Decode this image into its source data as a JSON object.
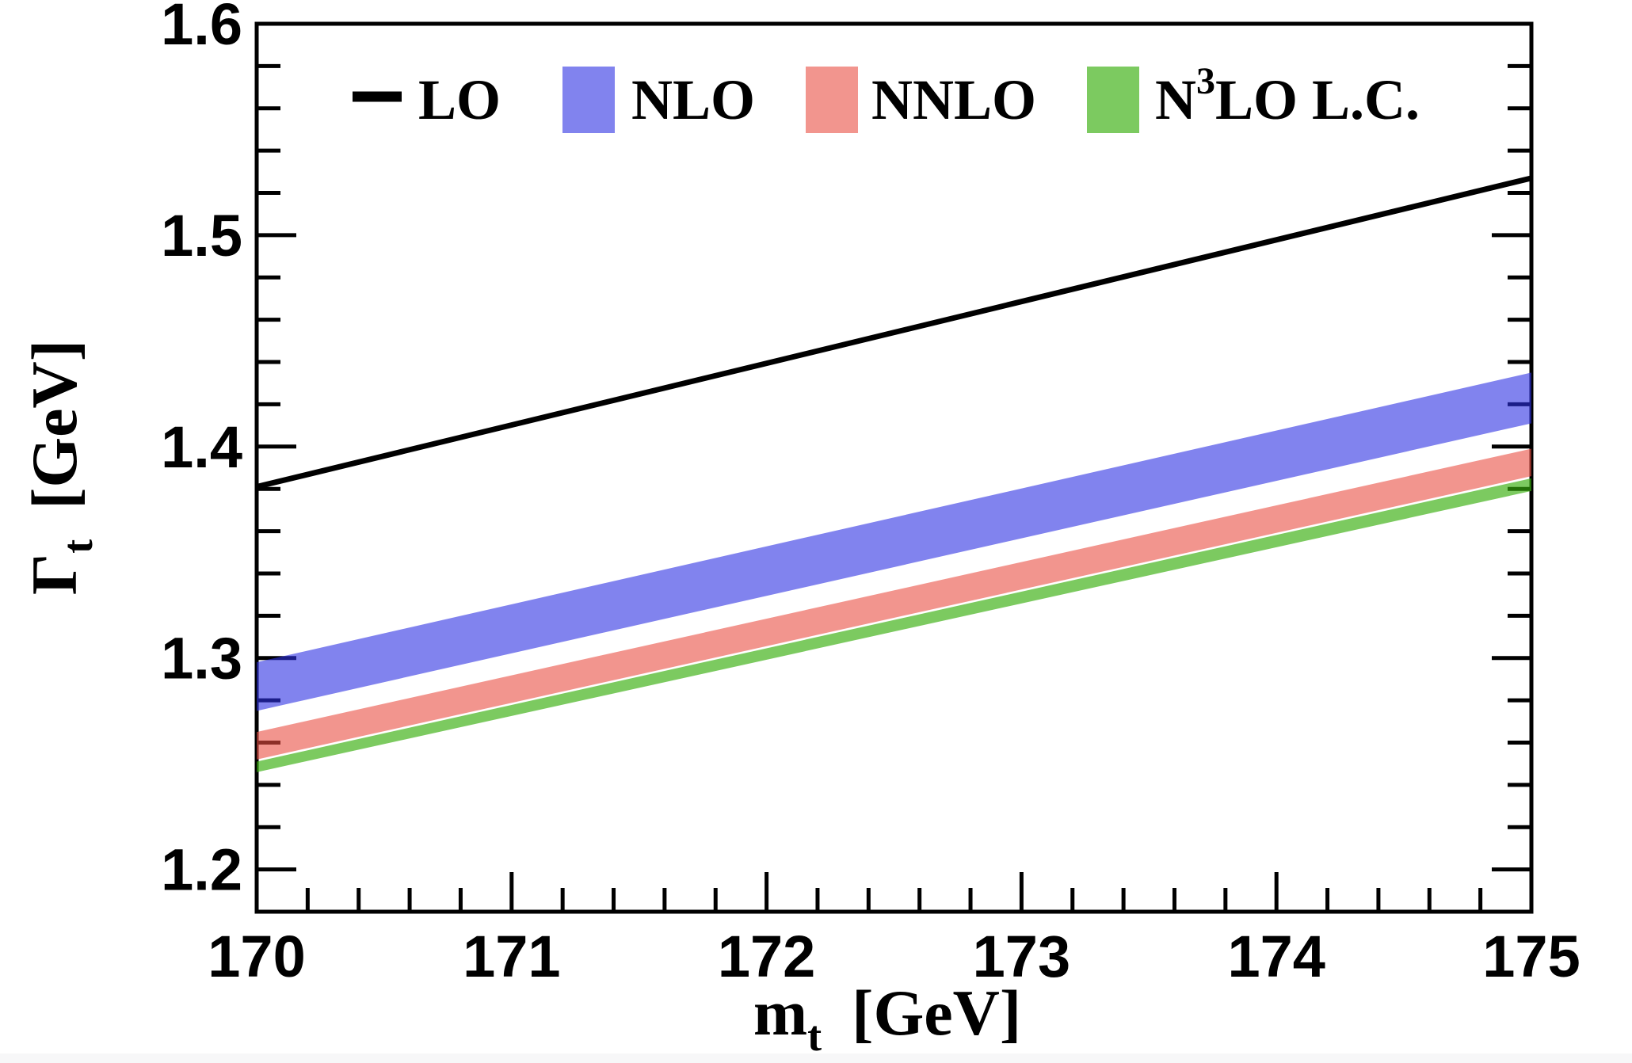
{
  "page": {
    "background": "#ffffff",
    "bottom_strip_color": "#f7f7f8",
    "frame_color": "#000000",
    "text_color": "#000000"
  },
  "chart_data": {
    "type": "line",
    "title": "",
    "xlabel": {
      "base": "m",
      "sub": "t",
      "unit": "[GeV]"
    },
    "ylabel": {
      "base": "Γ",
      "sub": "t",
      "unit": "[GeV]"
    },
    "xlim": [
      170,
      175
    ],
    "ylim": [
      1.18,
      1.6
    ],
    "grid": false,
    "x": [
      170,
      175
    ],
    "x_major_ticks": [
      170,
      171,
      172,
      173,
      174,
      175
    ],
    "x_tick_labels": [
      "170",
      "171",
      "172",
      "173",
      "174",
      "175"
    ],
    "x_minor_step": 0.2,
    "y_major_ticks": [
      1.2,
      1.3,
      1.4,
      1.5,
      1.6
    ],
    "y_tick_labels": [
      "1.2",
      "1.3",
      "1.4",
      "1.5",
      "1.6"
    ],
    "y_minor_step": 0.02,
    "series": [
      {
        "name": "LO",
        "type": "line",
        "color": "#000000",
        "x": [
          170,
          175
        ],
        "values": [
          1.381,
          1.527
        ]
      },
      {
        "name": "NLO",
        "type": "band",
        "color": "#8183EE",
        "fill": "#2D30E3",
        "opacity": 0.6,
        "x": [
          170,
          175
        ],
        "upper": [
          1.298,
          1.435
        ],
        "lower": [
          1.275,
          1.411
        ]
      },
      {
        "name": "NNLO",
        "type": "band",
        "color": "#F2958E",
        "fill": "#E94E43",
        "opacity": 0.6,
        "x": [
          170,
          175
        ],
        "upper": [
          1.265,
          1.399
        ],
        "lower": [
          1.252,
          1.386
        ]
      },
      {
        "name": "N3LO L.C.",
        "type": "band",
        "color": "#7CCA60",
        "fill": "#35AD0A",
        "opacity": 0.65,
        "x": [
          170,
          175
        ],
        "upper": [
          1.251,
          1.385
        ],
        "lower": [
          1.246,
          1.379
        ]
      }
    ],
    "legend_position": "top-inside",
    "legend": [
      {
        "label_pre": "LO",
        "label_sup": "",
        "label_post": "",
        "marker": "line",
        "color": "#000000"
      },
      {
        "label_pre": "NLO",
        "label_sup": "",
        "label_post": "",
        "marker": "box",
        "color": "#8183EE"
      },
      {
        "label_pre": "NNLO",
        "label_sup": "",
        "label_post": "",
        "marker": "box",
        "color": "#F2958E"
      },
      {
        "label_pre": "N",
        "label_sup": "3",
        "label_post": "LO L.C.",
        "marker": "box",
        "color": "#7CCA60"
      }
    ]
  }
}
